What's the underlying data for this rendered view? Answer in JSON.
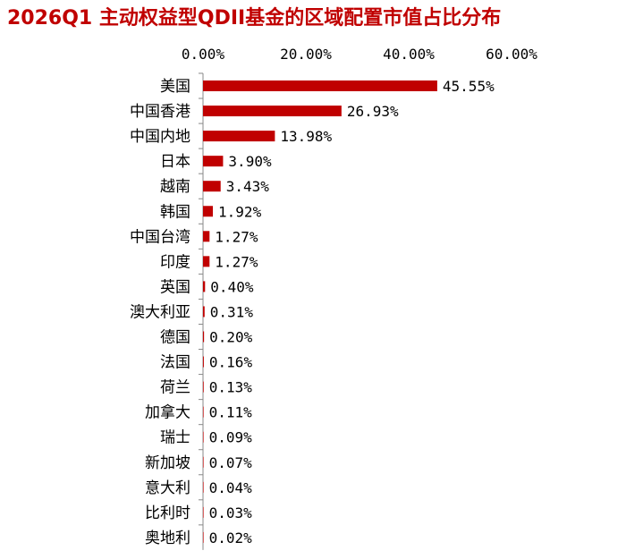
{
  "chart_data": {
    "type": "bar",
    "orientation": "horizontal",
    "title": "2026Q1 主动权益型QDII基金的区域配置市值占比分布",
    "xlabel": "",
    "ylabel": "",
    "xlim": [
      0,
      70
    ],
    "x_ticks": [
      "0.00%",
      "20.00%",
      "40.00%",
      "60.00%"
    ],
    "x_tick_values": [
      0,
      20,
      40,
      60
    ],
    "x_axis_position": "top",
    "grid": false,
    "legend": "none",
    "bar_color": "#c00000",
    "categories": [
      "美国",
      "中国香港",
      "中国内地",
      "日本",
      "越南",
      "韩国",
      "中国台湾",
      "印度",
      "英国",
      "澳大利亚",
      "德国",
      "法国",
      "荷兰",
      "加拿大",
      "瑞士",
      "新加坡",
      "意大利",
      "比利时",
      "奥地利"
    ],
    "values": [
      45.55,
      26.93,
      13.98,
      3.9,
      3.43,
      1.92,
      1.27,
      1.27,
      0.4,
      0.31,
      0.2,
      0.16,
      0.13,
      0.11,
      0.09,
      0.07,
      0.04,
      0.03,
      0.02
    ],
    "data_labels": [
      "45.55%",
      "26.93%",
      "13.98%",
      "3.90%",
      "3.43%",
      "1.92%",
      "1.27%",
      "1.27%",
      "0.40%",
      "0.31%",
      "0.20%",
      "0.16%",
      "0.13%",
      "0.11%",
      "0.09%",
      "0.07%",
      "0.04%",
      "0.03%",
      "0.02%"
    ]
  }
}
